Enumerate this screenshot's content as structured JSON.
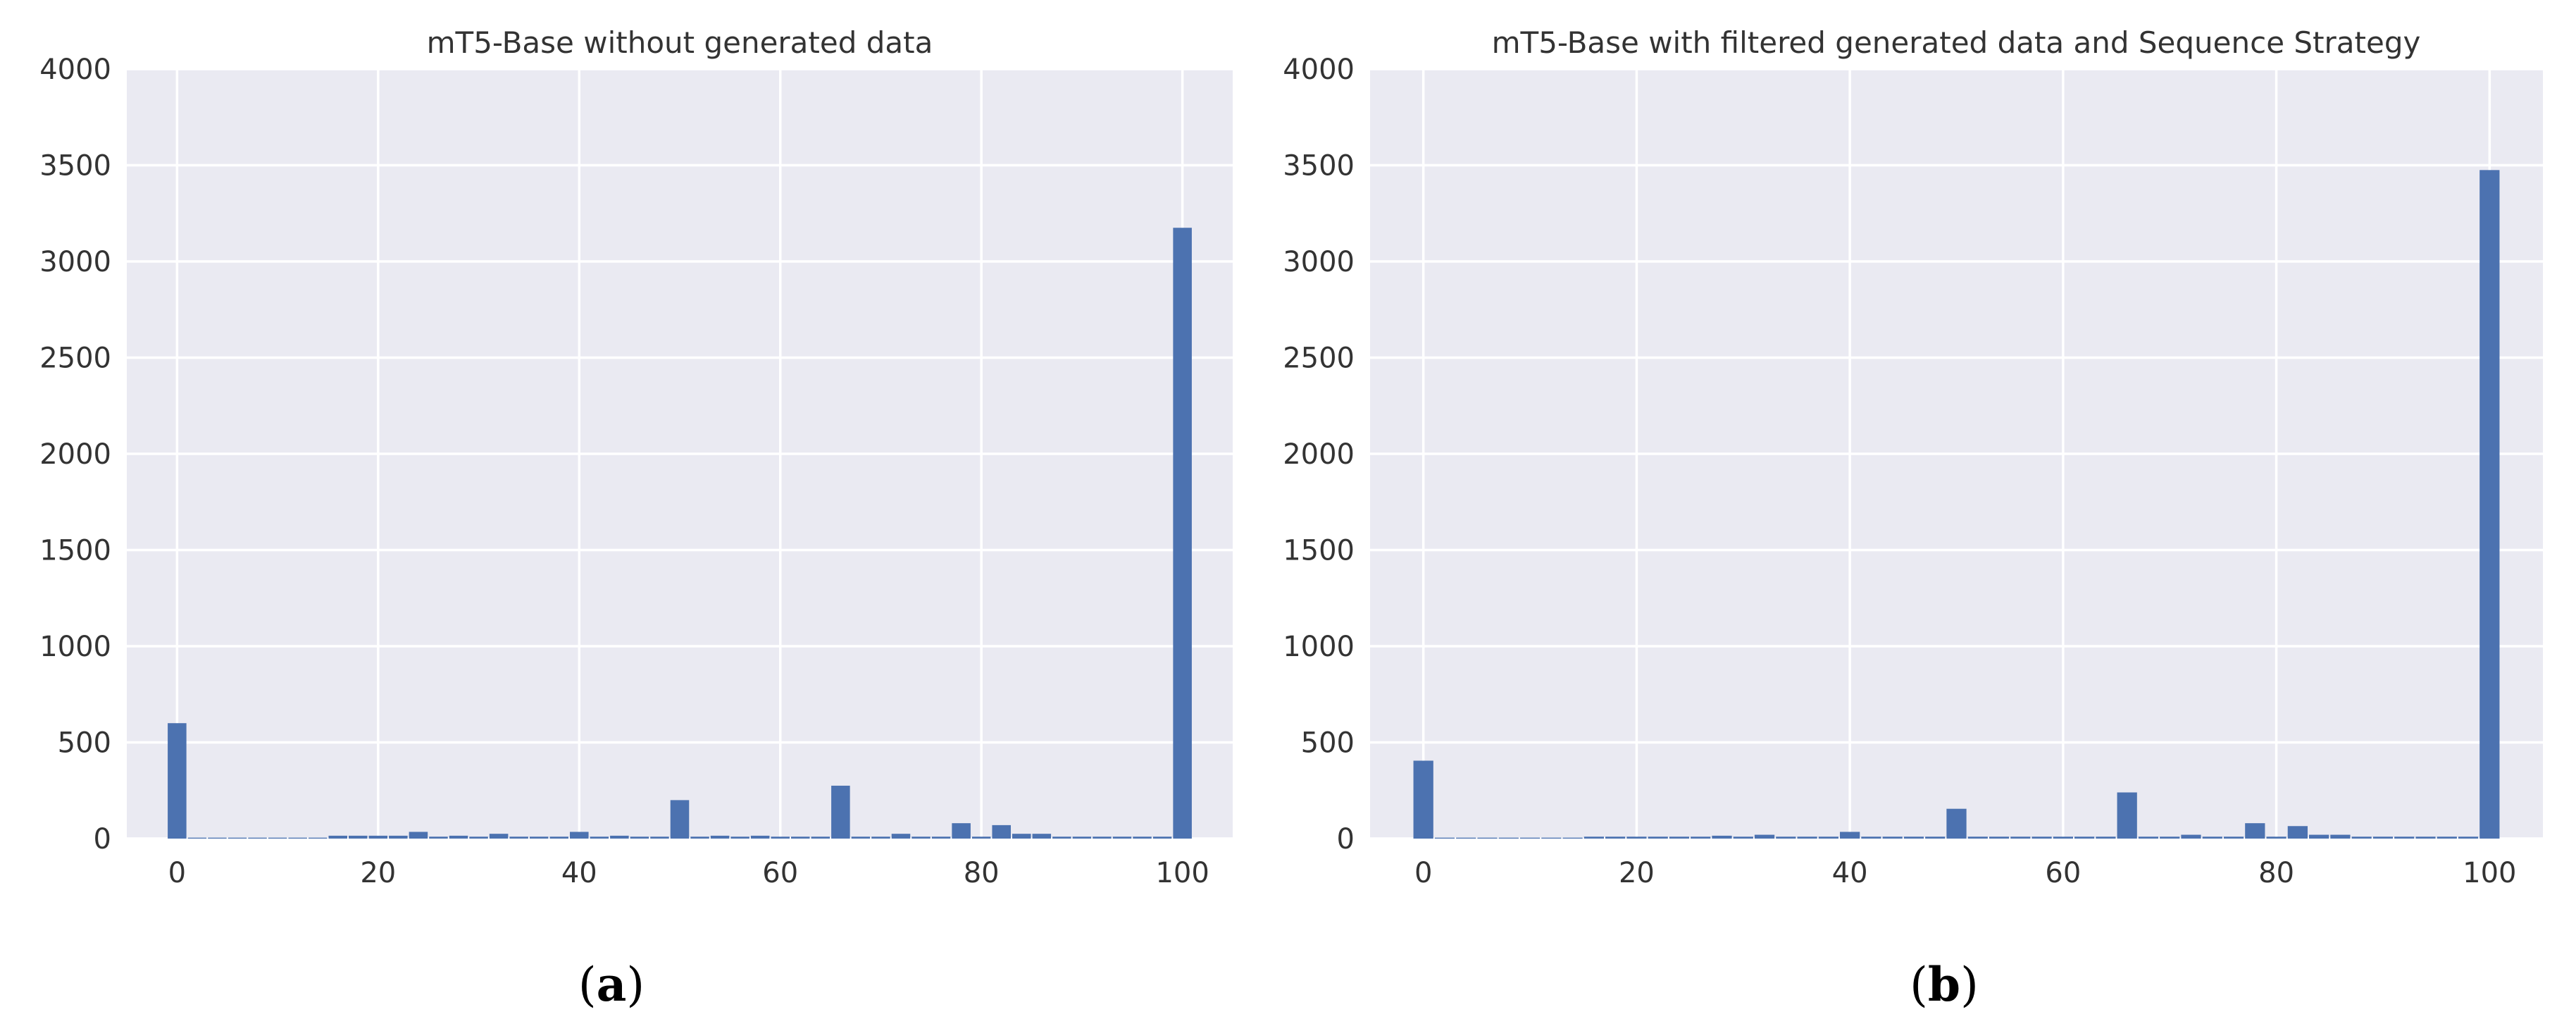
{
  "chart_data": [
    {
      "type": "bar",
      "title": "mT5-Base without generated data",
      "caption": "a",
      "xlabel": "",
      "ylabel": "",
      "xlim": [
        -5,
        105
      ],
      "ylim": [
        0,
        4000
      ],
      "xticks": [
        "0",
        "20",
        "40",
        "60",
        "80",
        "100"
      ],
      "yticks": [
        "0",
        "500",
        "1000",
        "1500",
        "2000",
        "2500",
        "3000",
        "3500",
        "4000"
      ],
      "grid": true,
      "bin_width": 2,
      "x": [
        0,
        2,
        4,
        6,
        8,
        10,
        12,
        14,
        16,
        18,
        20,
        22,
        24,
        26,
        28,
        30,
        32,
        34,
        36,
        38,
        40,
        42,
        44,
        46,
        48,
        50,
        52,
        54,
        56,
        58,
        60,
        62,
        64,
        66,
        68,
        70,
        72,
        74,
        76,
        78,
        80,
        82,
        84,
        86,
        88,
        90,
        92,
        94,
        96,
        98,
        100
      ],
      "values": [
        600,
        5,
        5,
        5,
        5,
        5,
        5,
        5,
        15,
        15,
        15,
        15,
        35,
        10,
        15,
        10,
        25,
        10,
        10,
        10,
        35,
        10,
        15,
        10,
        10,
        200,
        10,
        15,
        10,
        15,
        10,
        10,
        10,
        275,
        10,
        10,
        25,
        10,
        10,
        80,
        10,
        70,
        25,
        25,
        10,
        10,
        10,
        10,
        10,
        10,
        3175
      ]
    },
    {
      "type": "bar",
      "title": "mT5-Base with filtered generated data and Sequence Strategy",
      "caption": "b",
      "xlabel": "",
      "ylabel": "",
      "xlim": [
        -5,
        105
      ],
      "ylim": [
        0,
        4000
      ],
      "xticks": [
        "0",
        "20",
        "40",
        "60",
        "80",
        "100"
      ],
      "yticks": [
        "0",
        "500",
        "1000",
        "1500",
        "2000",
        "2500",
        "3000",
        "3500",
        "4000"
      ],
      "grid": true,
      "bin_width": 2,
      "x": [
        0,
        2,
        4,
        6,
        8,
        10,
        12,
        14,
        16,
        18,
        20,
        22,
        24,
        26,
        28,
        30,
        32,
        34,
        36,
        38,
        40,
        42,
        44,
        46,
        48,
        50,
        52,
        54,
        56,
        58,
        60,
        62,
        64,
        66,
        68,
        70,
        72,
        74,
        76,
        78,
        80,
        82,
        84,
        86,
        88,
        90,
        92,
        94,
        96,
        98,
        100
      ],
      "values": [
        405,
        5,
        5,
        5,
        5,
        5,
        5,
        5,
        10,
        10,
        10,
        10,
        10,
        10,
        15,
        10,
        20,
        10,
        10,
        10,
        35,
        10,
        10,
        10,
        10,
        155,
        10,
        10,
        10,
        10,
        10,
        10,
        10,
        240,
        10,
        10,
        20,
        10,
        10,
        80,
        10,
        65,
        20,
        20,
        10,
        10,
        10,
        10,
        10,
        10,
        3475
      ]
    }
  ]
}
